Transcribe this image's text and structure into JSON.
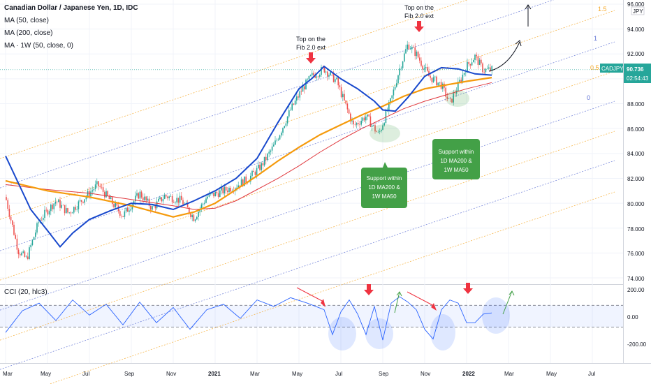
{
  "legend": {
    "symbol": "Canadian Dollar / Japanese Yen, 1D, IDC",
    "ma50": "MA (50, close)",
    "ma200": "MA (200, close)",
    "ma1w": "MA · 1W (50, close, 0)",
    "cci": "CCI (20, hlc3)"
  },
  "price_panel": {
    "currency": "JPY",
    "ticker_tag": "CADJPY",
    "last_price": "90.736",
    "countdown": "02:54:43",
    "y_ticks": [
      "96.000",
      "94.000",
      "92.000",
      "90.000",
      "88.000",
      "86.000",
      "84.000",
      "82.000",
      "80.000",
      "78.000",
      "76.000",
      "74.000"
    ]
  },
  "cci_panel": {
    "y_ticks": [
      "200.00",
      "0.00",
      "-200.00"
    ]
  },
  "x_ticks": [
    "Mar",
    "May",
    "Jul",
    "Sep",
    "Nov",
    "2021",
    "Mar",
    "May",
    "Jul",
    "Sep",
    "Nov",
    "2022",
    "Mar",
    "May",
    "Jul"
  ],
  "fib_levels": [
    "1.5",
    "1",
    "0.5",
    "0"
  ],
  "annotations": {
    "top1": [
      "Top on the",
      "Fib 2.0 ext"
    ],
    "top2": [
      "Top on the",
      "Fib 2.0 ext"
    ],
    "support1": [
      "Support within",
      "1D MA200 &",
      "1W MA50"
    ],
    "support2": [
      "Support within",
      "1D MA200 &",
      "1W MA50"
    ]
  },
  "colors": {
    "ma50": "#1848cc",
    "ma200": "#f59a0c",
    "ma1w": "#e0393e",
    "up_candle": "#26a69a",
    "down_candle": "#ef5350",
    "cci_line": "#2962ff",
    "support_box": "#43a047",
    "arrow_red": "#ef3340",
    "fib_blue": "#5b6ed3",
    "fib_orange": "#f5a623",
    "tag_green": "#26a69a"
  },
  "chart_data": {
    "type": "line",
    "title": "Canadian Dollar / Japanese Yen, 1D, IDC",
    "y_range": [
      74,
      96
    ],
    "cci_range": [
      -380,
      250
    ],
    "x_month_index": [
      0,
      14
    ],
    "series": [
      {
        "name": "MA (50, close)",
        "x": [
          0,
          0.6,
          1,
          1.3,
          1.6,
          2,
          2.5,
          3,
          3.5,
          4,
          4.5,
          5,
          5.5,
          6,
          6.5,
          7,
          7.3,
          7.6,
          8,
          8.4,
          8.8,
          9,
          9.3,
          9.6,
          10,
          10.4,
          10.8,
          11,
          11.2,
          11.6
        ],
        "values": [
          83.8,
          79.5,
          77.8,
          76.5,
          77.6,
          78.7,
          79.4,
          80.0,
          79.9,
          79.5,
          80.2,
          81.0,
          82.0,
          83.6,
          86.5,
          89.2,
          90.0,
          91.0,
          90.0,
          89.2,
          88.2,
          87.5,
          87.4,
          88.5,
          90.2,
          90.9,
          90.8,
          90.6,
          90.4,
          90.3
        ]
      },
      {
        "name": "MA (200, close)",
        "x": [
          0,
          1,
          2,
          3,
          4,
          4.5,
          5,
          5.5,
          6,
          6.5,
          7,
          7.5,
          8,
          8.5,
          9,
          9.5,
          10,
          10.5,
          11,
          11.6
        ],
        "values": [
          81.8,
          81.0,
          80.5,
          79.8,
          78.9,
          79.3,
          80.0,
          81.1,
          82.2,
          83.4,
          84.5,
          85.5,
          86.3,
          87.1,
          87.8,
          88.6,
          89.2,
          89.5,
          89.8,
          90.1
        ]
      },
      {
        "name": "MA · 1W (50, close, 0)",
        "x": [
          0,
          1,
          2,
          3,
          4,
          4.5,
          5,
          5.5,
          6,
          6.5,
          7,
          7.5,
          8,
          8.5,
          9,
          9.5,
          10,
          10.5,
          11,
          11.6
        ],
        "values": [
          81.5,
          81.1,
          80.8,
          80.3,
          79.8,
          79.5,
          79.6,
          80.2,
          81.1,
          82.0,
          83.0,
          84.1,
          85.1,
          86.0,
          86.8,
          87.6,
          88.2,
          88.7,
          89.2,
          89.7
        ]
      },
      {
        "name": "Price",
        "x": [
          0,
          0.3,
          0.5,
          0.8,
          1.2,
          1.5,
          1.9,
          2.2,
          2.5,
          2.8,
          3.2,
          3.5,
          3.8,
          4.2,
          4.5,
          4.8,
          5.2,
          5.5,
          5.8,
          6.1,
          6.4,
          6.8,
          7.1,
          7.3,
          7.6,
          7.9,
          8.1,
          8.3,
          8.6,
          8.9,
          9.2,
          9.4,
          9.6,
          9.8,
          10.1,
          10.4,
          10.6,
          10.8,
          11.0,
          11.2,
          11.4,
          11.6
        ],
        "values": [
          80.5,
          76.2,
          75.5,
          78.6,
          80.2,
          79.2,
          80.5,
          81.5,
          80.2,
          79.0,
          80.8,
          79.6,
          80.6,
          80.2,
          78.8,
          80.5,
          81.0,
          81.4,
          82.0,
          83.0,
          84.6,
          87.5,
          89.3,
          90.2,
          90.8,
          89.8,
          88.0,
          86.2,
          87.0,
          85.5,
          88.3,
          90.8,
          92.8,
          92.0,
          90.2,
          89.5,
          88.0,
          89.5,
          91.0,
          91.8,
          90.7,
          90.736
        ]
      },
      {
        "name": "CCI (20, hlc3)",
        "x": [
          0,
          0.4,
          0.8,
          1.2,
          1.6,
          2.0,
          2.4,
          2.8,
          3.2,
          3.6,
          4.0,
          4.4,
          4.8,
          5.2,
          5.6,
          6.0,
          6.4,
          6.8,
          7.2,
          7.6,
          7.8,
          8.0,
          8.2,
          8.4,
          8.6,
          8.8,
          9.0,
          9.2,
          9.4,
          9.6,
          9.8,
          10.0,
          10.2,
          10.4,
          10.6,
          10.8,
          11.0,
          11.2,
          11.4,
          11.6
        ],
        "values": [
          -150,
          50,
          120,
          -40,
          150,
          10,
          110,
          -80,
          130,
          -60,
          80,
          -120,
          60,
          110,
          -20,
          150,
          90,
          170,
          120,
          60,
          -170,
          40,
          150,
          20,
          -170,
          90,
          -220,
          120,
          180,
          130,
          60,
          -120,
          -210,
          60,
          150,
          120,
          -60,
          -60,
          20,
          30
        ]
      }
    ],
    "grid": true,
    "legend_position": "top-left"
  }
}
